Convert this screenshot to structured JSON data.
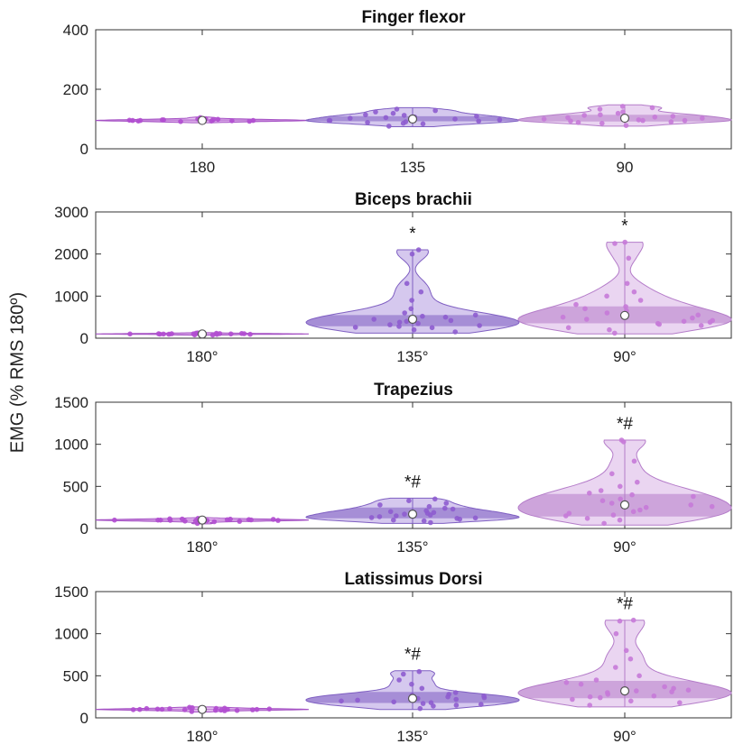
{
  "y_axis_label": "EMG (% RMS 180º)",
  "colors": {
    "180": {
      "fill": "#d9b3e6",
      "edge": "#b47cc9",
      "dot": "#c77ad8"
    },
    "135": {
      "fill": "#b39ae0",
      "edge": "#7f5fc2",
      "dot": "#8e5ccf"
    },
    "90": {
      "fill": "#d68fe8",
      "edge": "#a552c4",
      "dot": "#b14ed0"
    }
  },
  "chart_data": [
    {
      "type": "violin",
      "title": "Finger flexor",
      "categories": [
        "180",
        "135",
        "90"
      ],
      "ylim": [
        0,
        420
      ],
      "yticks": [
        "0",
        "200",
        "400"
      ],
      "annotations": [
        "",
        "",
        ""
      ],
      "series": [
        {
          "name": "180",
          "median": 100,
          "q1": 97,
          "q3": 104,
          "min": 92,
          "max": 112,
          "points": [
            95,
            98,
            100,
            102,
            105,
            99,
            101,
            97,
            103,
            110,
            96,
            100,
            104,
            98,
            101,
            102,
            99,
            100,
            106,
            94
          ]
        },
        {
          "name": "135",
          "median": 105,
          "q1": 96,
          "q3": 115,
          "min": 78,
          "max": 145,
          "points": [
            80,
            90,
            95,
            100,
            105,
            110,
            115,
            120,
            130,
            140,
            98,
            102,
            108,
            112,
            88,
            93,
            118,
            125,
            135,
            100
          ]
        },
        {
          "name": "90",
          "median": 108,
          "q1": 96,
          "q3": 120,
          "min": 80,
          "max": 155,
          "points": [
            82,
            90,
            95,
            100,
            105,
            110,
            115,
            120,
            130,
            145,
            150,
            98,
            102,
            108,
            112,
            93,
            118,
            125,
            140,
            100
          ]
        }
      ]
    },
    {
      "type": "violin",
      "title": "Biceps brachii",
      "categories": [
        "180°",
        "135°",
        "90°"
      ],
      "ylim": [
        0,
        3000
      ],
      "yticks": [
        "0",
        "1000",
        "2000",
        "3000"
      ],
      "annotations": [
        "",
        "*",
        "*"
      ],
      "series": [
        {
          "name": "180°",
          "median": 100,
          "q1": 90,
          "q3": 110,
          "min": 70,
          "max": 130,
          "points": [
            80,
            90,
            95,
            100,
            105,
            110,
            120,
            85,
            100,
            115,
            92,
            98,
            104,
            108,
            125,
            75,
            100,
            96,
            102,
            112
          ]
        },
        {
          "name": "135°",
          "median": 450,
          "q1": 280,
          "q3": 560,
          "min": 120,
          "max": 2100,
          "points": [
            150,
            200,
            250,
            300,
            350,
            400,
            450,
            500,
            550,
            600,
            700,
            900,
            1100,
            1300,
            2000,
            2100,
            280,
            320,
            420,
            380,
            520,
            260
          ]
        },
        {
          "name": "90°",
          "median": 540,
          "q1": 350,
          "q3": 760,
          "min": 100,
          "max": 2280,
          "points": [
            120,
            200,
            300,
            350,
            400,
            450,
            500,
            550,
            600,
            700,
            800,
            900,
            1000,
            1100,
            1300,
            1900,
            2250,
            2280,
            380,
            420,
            480,
            650,
            750,
            250,
            330
          ]
        }
      ]
    },
    {
      "type": "violin",
      "title": "Trapezius",
      "categories": [
        "180°",
        "135°",
        "90°"
      ],
      "ylim": [
        0,
        1500
      ],
      "yticks": [
        "0",
        "500",
        "1000",
        "1500"
      ],
      "annotations": [
        "",
        "*#",
        "*#"
      ],
      "series": [
        {
          "name": "180°",
          "median": 100,
          "q1": 92,
          "q3": 108,
          "min": 55,
          "max": 130,
          "points": [
            60,
            80,
            90,
            95,
            100,
            105,
            110,
            115,
            120,
            85,
            98,
            102,
            108,
            92,
            100,
            96,
            104,
            112,
            88,
            100
          ]
        },
        {
          "name": "135°",
          "median": 170,
          "q1": 120,
          "q3": 250,
          "min": 60,
          "max": 360,
          "points": [
            70,
            90,
            110,
            120,
            140,
            160,
            180,
            200,
            230,
            260,
            280,
            300,
            330,
            350,
            100,
            130,
            150,
            170,
            210,
            240,
            190,
            125
          ]
        },
        {
          "name": "90°",
          "median": 280,
          "q1": 140,
          "q3": 420,
          "min": 40,
          "max": 1050,
          "points": [
            60,
            100,
            150,
            200,
            250,
            300,
            350,
            400,
            450,
            500,
            550,
            650,
            800,
            1050,
            1030,
            120,
            180,
            220,
            280,
            330,
            380,
            420,
            160,
            260
          ]
        }
      ]
    },
    {
      "type": "violin",
      "title": "Latissimus Dorsi",
      "categories": [
        "180°",
        "135°",
        "90°"
      ],
      "ylim": [
        0,
        1500
      ],
      "yticks": [
        "0",
        "500",
        "1000",
        "1500"
      ],
      "annotations": [
        "",
        "*#",
        "*#"
      ],
      "series": [
        {
          "name": "180°",
          "median": 100,
          "q1": 92,
          "q3": 108,
          "min": 70,
          "max": 130,
          "points": [
            75,
            85,
            90,
            95,
            100,
            105,
            110,
            115,
            120,
            125,
            98,
            102,
            92,
            108,
            100,
            88,
            112,
            96,
            104,
            100
          ]
        },
        {
          "name": "135°",
          "median": 230,
          "q1": 170,
          "q3": 310,
          "min": 100,
          "max": 560,
          "points": [
            110,
            140,
            160,
            180,
            200,
            220,
            240,
            260,
            280,
            300,
            350,
            400,
            450,
            550,
            520,
            150,
            190,
            230,
            270,
            210,
            250,
            170
          ]
        },
        {
          "name": "90°",
          "median": 320,
          "q1": 230,
          "q3": 450,
          "min": 130,
          "max": 1160,
          "points": [
            150,
            200,
            250,
            280,
            300,
            320,
            350,
            400,
            450,
            500,
            600,
            700,
            800,
            1000,
            1150,
            1160,
            220,
            260,
            310,
            370,
            420,
            180,
            240,
            330
          ]
        }
      ]
    }
  ]
}
